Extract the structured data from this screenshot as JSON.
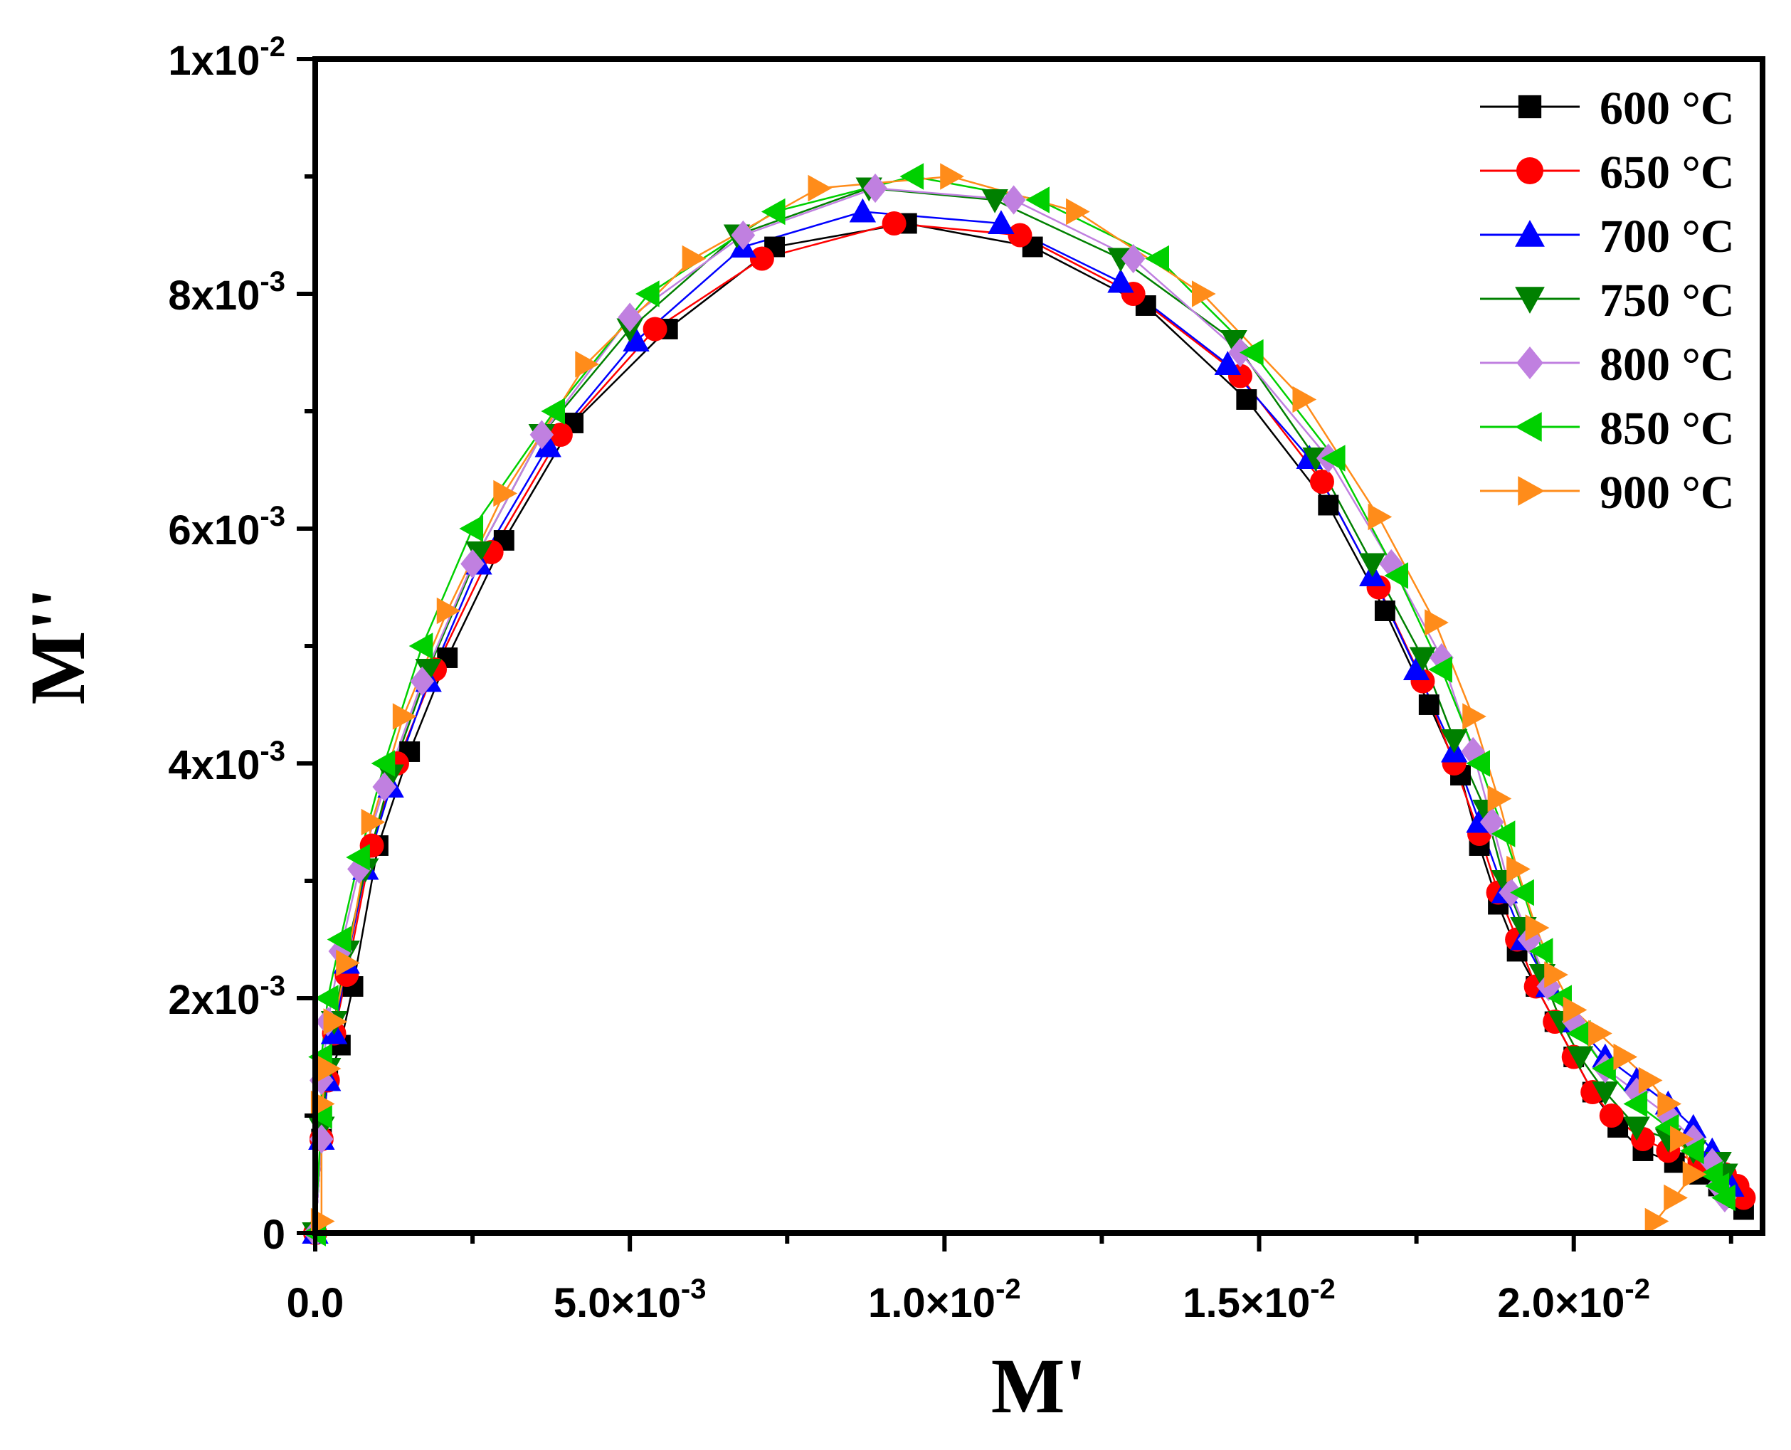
{
  "chart_data": {
    "type": "line",
    "title": "",
    "xlabel": "M'",
    "ylabel": "M''",
    "xlim": [
      0,
      0.023
    ],
    "ylim": [
      0,
      0.01
    ],
    "grid": false,
    "legend_position": "top-right",
    "x_ticks": [
      {
        "value": 0.0,
        "mantissa": "0.0",
        "exp": ""
      },
      {
        "value": 0.005,
        "mantissa": "5.0×10",
        "exp": "-3"
      },
      {
        "value": 0.01,
        "mantissa": "1.0×10",
        "exp": "-2"
      },
      {
        "value": 0.015,
        "mantissa": "1.5×10",
        "exp": "-2"
      },
      {
        "value": 0.02,
        "mantissa": "2.0×10",
        "exp": "-2"
      }
    ],
    "y_ticks": [
      {
        "value": 0,
        "mantissa": "0",
        "exp": ""
      },
      {
        "value": 0.002,
        "mantissa": "2x10",
        "exp": "-3"
      },
      {
        "value": 0.004,
        "mantissa": "4x10",
        "exp": "-3"
      },
      {
        "value": 0.006,
        "mantissa": "6x10",
        "exp": "-3"
      },
      {
        "value": 0.008,
        "mantissa": "8x10",
        "exp": "-3"
      },
      {
        "value": 0.01,
        "mantissa": "1x10",
        "exp": "-2"
      }
    ],
    "series": [
      {
        "name": "600 °C",
        "color": "#000000",
        "fill": "#000000",
        "marker": "square",
        "x": [
          0.0,
          0.0001,
          0.0002,
          0.0004,
          0.0006,
          0.001,
          0.0015,
          0.0021,
          0.003,
          0.0041,
          0.0056,
          0.0073,
          0.0094,
          0.0114,
          0.0132,
          0.0148,
          0.0161,
          0.017,
          0.0177,
          0.0182,
          0.0185,
          0.0188,
          0.0191,
          0.0194,
          0.0197,
          0.02,
          0.0203,
          0.0207,
          0.0211,
          0.0216,
          0.022,
          0.0223,
          0.0226,
          0.0227
        ],
        "y": [
          0.0,
          0.0008,
          0.0013,
          0.0016,
          0.0021,
          0.0033,
          0.0041,
          0.0049,
          0.0059,
          0.0069,
          0.0077,
          0.0084,
          0.0086,
          0.0084,
          0.0079,
          0.0071,
          0.0062,
          0.0053,
          0.0045,
          0.0039,
          0.0033,
          0.0028,
          0.0024,
          0.0021,
          0.0018,
          0.0015,
          0.0012,
          0.0009,
          0.0007,
          0.0006,
          0.0005,
          0.0004,
          0.0003,
          0.0002
        ]
      },
      {
        "name": "650 °C",
        "color": "#ff0000",
        "fill": "#ff0000",
        "marker": "circle",
        "x": [
          0.0,
          0.0001,
          0.0002,
          0.0003,
          0.0005,
          0.0009,
          0.0013,
          0.0019,
          0.0028,
          0.0039,
          0.0054,
          0.0071,
          0.0092,
          0.0112,
          0.013,
          0.0147,
          0.016,
          0.0169,
          0.0176,
          0.0181,
          0.0185,
          0.0188,
          0.0191,
          0.0194,
          0.0197,
          0.02,
          0.0203,
          0.0206,
          0.0211,
          0.0215,
          0.022,
          0.0224,
          0.0226,
          0.0227
        ],
        "y": [
          0.0,
          0.0008,
          0.0013,
          0.0017,
          0.0022,
          0.0033,
          0.004,
          0.0048,
          0.0058,
          0.0068,
          0.0077,
          0.0083,
          0.0086,
          0.0085,
          0.008,
          0.0073,
          0.0064,
          0.0055,
          0.0047,
          0.004,
          0.0034,
          0.0029,
          0.0025,
          0.0021,
          0.0018,
          0.0015,
          0.0012,
          0.001,
          0.0008,
          0.0007,
          0.0006,
          0.0005,
          0.0004,
          0.0003
        ]
      },
      {
        "name": "700 °C",
        "color": "#0000ff",
        "fill": "#0000ff",
        "marker": "triangle-up",
        "x": [
          0.0,
          0.0001,
          0.0002,
          0.0003,
          0.0005,
          0.0008,
          0.0012,
          0.0018,
          0.0026,
          0.0037,
          0.0051,
          0.0068,
          0.0087,
          0.0109,
          0.0128,
          0.0145,
          0.0158,
          0.0168,
          0.0175,
          0.0181,
          0.0185,
          0.0189,
          0.0192,
          0.0196,
          0.02,
          0.0205,
          0.021,
          0.0215,
          0.0219,
          0.0222,
          0.0224,
          0.0225
        ],
        "y": [
          0.0,
          0.0008,
          0.0013,
          0.0017,
          0.0023,
          0.0031,
          0.0038,
          0.0047,
          0.0057,
          0.0067,
          0.0076,
          0.0084,
          0.0087,
          0.0086,
          0.0081,
          0.0074,
          0.0066,
          0.0056,
          0.0048,
          0.0041,
          0.0035,
          0.0029,
          0.0025,
          0.0021,
          0.0018,
          0.0015,
          0.0013,
          0.0011,
          0.0009,
          0.0007,
          0.0005,
          0.0004
        ]
      },
      {
        "name": "750 °C",
        "color": "#008000",
        "fill": "#008000",
        "marker": "triangle-down",
        "x": [
          0.0,
          0.0001,
          0.0002,
          0.0003,
          0.0005,
          0.0008,
          0.0012,
          0.0018,
          0.0026,
          0.0036,
          0.005,
          0.0067,
          0.0088,
          0.0108,
          0.0128,
          0.0146,
          0.0159,
          0.0168,
          0.0176,
          0.0181,
          0.0186,
          0.0189,
          0.0192,
          0.0195,
          0.0198,
          0.0201,
          0.0205,
          0.021,
          0.0215,
          0.0219,
          0.0223,
          0.0224
        ],
        "y": [
          0.0,
          0.0009,
          0.0014,
          0.0018,
          0.0024,
          0.0031,
          0.0039,
          0.0048,
          0.0058,
          0.0068,
          0.0077,
          0.0085,
          0.0089,
          0.0088,
          0.0083,
          0.0076,
          0.0066,
          0.0057,
          0.0049,
          0.0042,
          0.0036,
          0.003,
          0.0026,
          0.0022,
          0.0018,
          0.0015,
          0.0012,
          0.0009,
          0.0008,
          0.0007,
          0.0006,
          0.0005
        ]
      },
      {
        "name": "800 °C",
        "color": "#c080e0",
        "fill": "#c080e0",
        "marker": "diamond",
        "x": [
          0.0,
          0.0001,
          0.0001,
          0.0002,
          0.0004,
          0.0007,
          0.0011,
          0.0017,
          0.0025,
          0.0036,
          0.005,
          0.0068,
          0.0089,
          0.0111,
          0.013,
          0.0147,
          0.0161,
          0.0171,
          0.0179,
          0.0184,
          0.0187,
          0.019,
          0.0193,
          0.0196,
          0.02,
          0.0205,
          0.021,
          0.0215,
          0.0219,
          0.0222,
          0.0223,
          0.0224
        ],
        "y": [
          0.0,
          0.0008,
          0.0013,
          0.0018,
          0.0024,
          0.0031,
          0.0038,
          0.0047,
          0.0057,
          0.0068,
          0.0078,
          0.0085,
          0.0089,
          0.0088,
          0.0083,
          0.0075,
          0.0066,
          0.0057,
          0.0049,
          0.0041,
          0.0035,
          0.0029,
          0.0025,
          0.0021,
          0.0018,
          0.0014,
          0.0012,
          0.001,
          0.0008,
          0.0006,
          0.0004,
          0.0003
        ]
      },
      {
        "name": "850 °C",
        "color": "#00d000",
        "fill": "#00d000",
        "marker": "triangle-left",
        "x": [
          0.0,
          0.0001,
          0.0001,
          0.0002,
          0.0004,
          0.0007,
          0.0011,
          0.0017,
          0.0025,
          0.0038,
          0.0053,
          0.0073,
          0.0095,
          0.0115,
          0.0134,
          0.0149,
          0.0162,
          0.0172,
          0.0179,
          0.0185,
          0.0189,
          0.0192,
          0.0195,
          0.0198,
          0.0201,
          0.0205,
          0.021,
          0.0215,
          0.0219,
          0.0222,
          0.0223,
          0.0224
        ],
        "y": [
          0.0,
          0.001,
          0.0015,
          0.002,
          0.0025,
          0.0032,
          0.004,
          0.005,
          0.006,
          0.007,
          0.008,
          0.0087,
          0.009,
          0.0088,
          0.0083,
          0.0075,
          0.0066,
          0.0056,
          0.0048,
          0.004,
          0.0034,
          0.0029,
          0.0024,
          0.002,
          0.0017,
          0.0014,
          0.0011,
          0.0009,
          0.0007,
          0.0005,
          0.0004,
          0.0003
        ]
      },
      {
        "name": "900 °C",
        "color": "#ff8c1a",
        "fill": "#ff8c1a",
        "marker": "triangle-right",
        "x": [
          0.0001,
          0.0001,
          0.0002,
          0.0003,
          0.0005,
          0.0009,
          0.0014,
          0.0021,
          0.003,
          0.0043,
          0.006,
          0.008,
          0.0101,
          0.0121,
          0.0141,
          0.0157,
          0.0169,
          0.0178,
          0.0184,
          0.0188,
          0.0191,
          0.0194,
          0.0197,
          0.02,
          0.0204,
          0.0208,
          0.0212,
          0.0215,
          0.0217,
          0.0219,
          0.0216,
          0.0213
        ],
        "y": [
          0.0001,
          0.0011,
          0.0014,
          0.0018,
          0.0023,
          0.0035,
          0.0044,
          0.0053,
          0.0063,
          0.0074,
          0.0083,
          0.0089,
          0.009,
          0.0087,
          0.008,
          0.0071,
          0.0061,
          0.0052,
          0.0044,
          0.0037,
          0.0031,
          0.0026,
          0.0022,
          0.0019,
          0.0017,
          0.0015,
          0.0013,
          0.0011,
          0.0008,
          0.0005,
          0.0003,
          0.0001
        ]
      }
    ]
  }
}
